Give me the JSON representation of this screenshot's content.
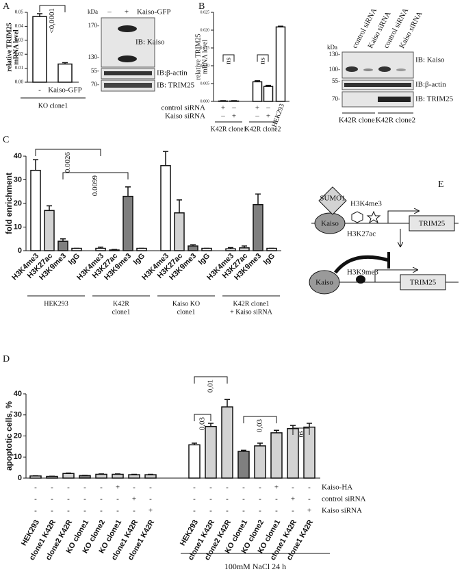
{
  "panel_labels": [
    "A",
    "B",
    "C",
    "D",
    "E"
  ],
  "chart_data": [
    {
      "type": "bar",
      "ylabel": [
        "relative TRIM25",
        "mRNA level"
      ],
      "categories": [
        "-",
        "Kaiso-GFP"
      ],
      "values": [
        0.047,
        0.013
      ],
      "errors": [
        0.002,
        0.001
      ],
      "colors": [
        "#ffffff",
        "#ffffff"
      ],
      "ylim": [
        0,
        0.05
      ],
      "yticks": [
        {
          "value": 0,
          "label": "0.00"
        },
        {
          "value": 0.01,
          "label": "0.01"
        },
        {
          "value": 0.02,
          "label": "0.02"
        },
        {
          "value": 0.03,
          "label": "0.03"
        },
        {
          "value": 0.04,
          "label": "0.04"
        },
        {
          "value": 0.05,
          "label": "0.05"
        }
      ],
      "annotations": [
        "<0,0001"
      ],
      "groups": [
        [
          "KO clone1"
        ]
      ]
    },
    {
      "type": "bar",
      "ylabel": [
        "relative TRIM25",
        "mRNA level"
      ],
      "categories": [
        null,
        null,
        null,
        null,
        "HEK293"
      ],
      "values": [
        0.0001,
        0.0001,
        0.0055,
        0.0042,
        0.0209
      ],
      "errors": [
        0.0001,
        0.0001,
        0.0003,
        0.0003,
        0.0002
      ],
      "colors": [
        "#ffffff",
        "#ffffff",
        "#ffffff",
        "#ffffff",
        "#ffffff"
      ],
      "ylim": [
        0,
        0.025
      ],
      "yticks": [
        {
          "value": 0,
          "label": "0.000"
        },
        {
          "value": 0.005,
          "label": "0.005"
        },
        {
          "value": 0.01,
          "label": "0.010"
        },
        {
          "value": 0.015,
          "label": "0.015"
        },
        {
          "value": 0.02,
          "label": "0.020"
        },
        {
          "value": 0.025,
          "label": "0.025"
        }
      ],
      "conditions": [
        {
          "name": "control siRNA",
          "marks": [
            "+",
            "–",
            "+",
            "–",
            null
          ]
        },
        {
          "name": "Kaiso siRNA",
          "marks": [
            "–",
            "+",
            "–",
            "+",
            null
          ]
        }
      ],
      "annotations": [
        "ns",
        "ns"
      ],
      "groups": [
        [
          "K42R clone1"
        ],
        [
          "K42R clone2"
        ]
      ]
    },
    {
      "type": "bar",
      "ylabel": [
        "fold enrichment"
      ],
      "categories": [
        "H3K4me3",
        "H3K27ac",
        "H3K9me3",
        "IgG",
        "H3K4me3",
        "H3K27ac",
        "H3K9me3",
        "IgG",
        "H3K4me3",
        "H3K27ac",
        "H3K9me3",
        "IgG",
        "H3K4me3",
        "H3K27ac",
        "H3K9me3",
        "IgG"
      ],
      "values": [
        34,
        17,
        4,
        1,
        1,
        0.3,
        23,
        1,
        36,
        16,
        2,
        1,
        0.8,
        1.2,
        19.5,
        1
      ],
      "errors": [
        4.5,
        2,
        1,
        0,
        0.5,
        0.2,
        4,
        0,
        6,
        5.5,
        0.5,
        0,
        0.5,
        0.8,
        4.5,
        0
      ],
      "colors": [
        "#ffffff",
        "#d3d3d3",
        "#7f7f7f",
        "#ffffff",
        "#ffffff",
        "#d3d3d3",
        "#7f7f7f",
        "#ffffff",
        "#ffffff",
        "#d3d3d3",
        "#7f7f7f",
        "#ffffff",
        "#ffffff",
        "#d3d3d3",
        "#7f7f7f",
        "#ffffff"
      ],
      "ylim": [
        0,
        40
      ],
      "yticks": [
        0,
        10,
        20,
        30,
        40
      ],
      "annotations": [
        "0.0026",
        "0.0099"
      ],
      "groups": [
        [
          "HEK293"
        ],
        [
          "K42R",
          "clone1"
        ],
        [
          "Kaiso KO",
          "clone1"
        ],
        [
          "K42R clone1",
          "+ Kaiso siRNA"
        ]
      ]
    },
    {
      "type": "bar",
      "ylabel": [
        "apoptotic cells, %"
      ],
      "categories": [
        "HEK293",
        "clone1 K42R",
        "clone2 K42R",
        "KO clone1",
        "KO clone2",
        "KO clone1",
        "clone1 K42R",
        "clone1 K42R",
        "HEK293",
        "clone1 K42R",
        "clone2 K42R",
        "KO clone1",
        "KO clone2",
        "KO clone1",
        "clone1 K42R",
        "clone1 K42R"
      ],
      "values": [
        1,
        0.8,
        2.2,
        1.2,
        1.8,
        1.8,
        1.6,
        1.6,
        15.8,
        24.5,
        33.8,
        12.7,
        15.3,
        21.5,
        23.5,
        24.2
      ],
      "errors": [
        0.1,
        0.1,
        0.2,
        0.1,
        0.2,
        0.2,
        0.2,
        0.2,
        0.8,
        1.5,
        3.5,
        0.5,
        1.3,
        1.2,
        1.5,
        1.8
      ],
      "colors": [
        "#ffffff",
        "#d3d3d3",
        "#d3d3d3",
        "#7f7f7f",
        "#d3d3d3",
        "#d3d3d3",
        "#d3d3d3",
        "#d3d3d3",
        "#ffffff",
        "#d3d3d3",
        "#d3d3d3",
        "#7f7f7f",
        "#d3d3d3",
        "#d3d3d3",
        "#d3d3d3",
        "#d3d3d3"
      ],
      "ylim": [
        0,
        40
      ],
      "yticks": [
        0,
        10,
        20,
        30,
        40
      ],
      "conditions": [
        {
          "name": "Kaiso-HA",
          "marks": [
            "-",
            "-",
            "-",
            "-",
            "-",
            "+",
            "-",
            "-",
            "-",
            "-",
            "-",
            "-",
            "-",
            "+",
            "-",
            "-"
          ]
        },
        {
          "name": "control siRNA",
          "marks": [
            "-",
            "-",
            "-",
            "-",
            "-",
            "-",
            "+",
            "-",
            "-",
            "-",
            "-",
            "-",
            "-",
            "-",
            "+",
            "-"
          ]
        },
        {
          "name": "Kaiso siRNA",
          "marks": [
            "-",
            "-",
            "-",
            "-",
            "-",
            "-",
            "-",
            "+",
            "-",
            "-",
            "-",
            "-",
            "-",
            "-",
            "-",
            "+"
          ]
        }
      ],
      "annotations": [
        "0,03",
        "0,01",
        "0,03",
        "ns"
      ],
      "footer": "100mM NaCl 24 h"
    }
  ],
  "blot_a": {
    "kda": "kDa",
    "lanes": [
      "–",
      "+"
    ],
    "treatment": "Kaiso-GFP",
    "markers": [
      "170-",
      "130-",
      "55-",
      "70-"
    ],
    "probes": [
      "IB: Kaiso",
      "IB:β-actin",
      "IB: TRIM25"
    ]
  },
  "blot_b": {
    "kda": "kDa",
    "lanes": [
      "control siRNA",
      "Kaiso siRNA",
      "control siRNA",
      "Kaiso siRNA"
    ],
    "markers": [
      "130-",
      "100-",
      "55-",
      "70-"
    ],
    "probes": [
      "IB: Kaiso",
      "IB:β-actin",
      "IB: TRIM25"
    ],
    "groups": [
      "K42R clone1",
      "K42R clone2"
    ]
  },
  "diagram_e": {
    "sumo": "SUMO1",
    "active_mark": "H3K4me3",
    "kaiso_top": "Kaiso",
    "acetyl_mark": "H3K27ac",
    "gene_top": "TRIM25",
    "kaiso_bottom": "Kaiso",
    "repressive_mark": "H3K9me3",
    "gene_bottom": "TRIM25"
  }
}
